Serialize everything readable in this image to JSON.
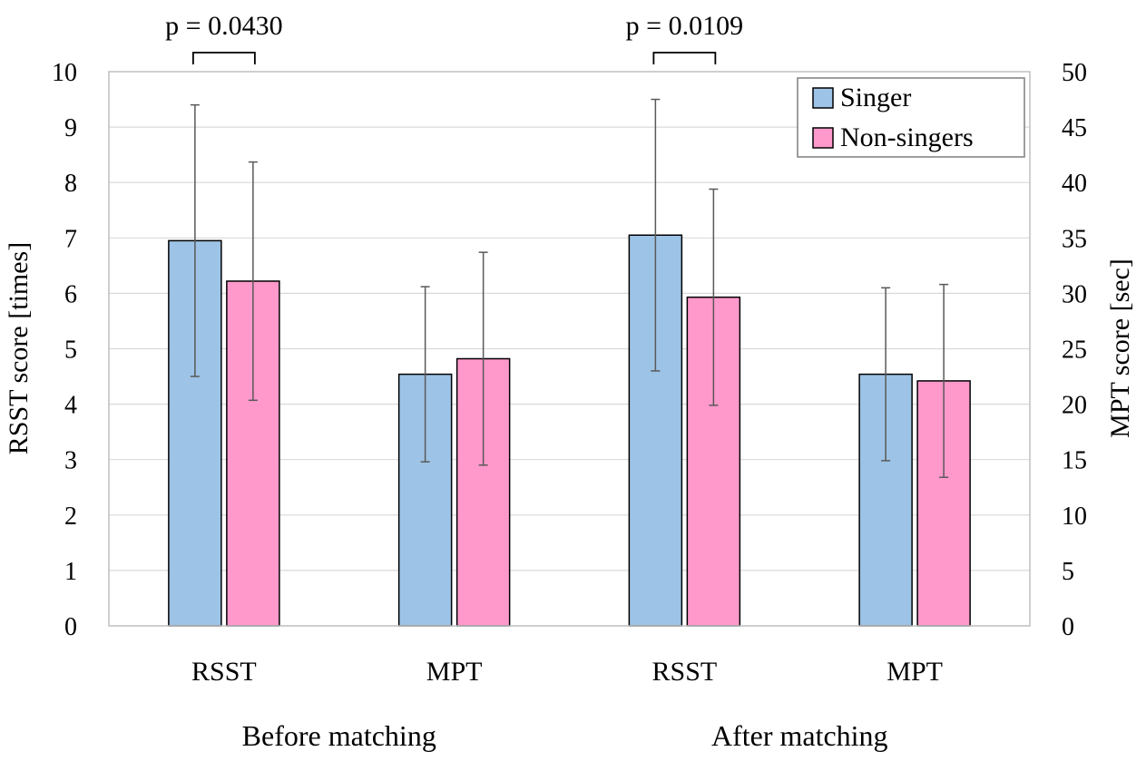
{
  "chart_data": {
    "type": "bar",
    "title": "",
    "ylabel_left": "RSST score [times]",
    "ylabel_right": "MPT score [sec]",
    "ylim_left": [
      0,
      10
    ],
    "ylim_right": [
      0,
      50
    ],
    "yticks_left": [
      "0",
      "1",
      "2",
      "3",
      "4",
      "5",
      "6",
      "7",
      "8",
      "9",
      "10"
    ],
    "yticks_right": [
      "0",
      "5",
      "10",
      "15",
      "20",
      "25",
      "30",
      "35",
      "40",
      "45",
      "50"
    ],
    "grid": true,
    "legend_position": "top-right",
    "groups": [
      {
        "label": "Before matching",
        "categories": [
          "RSST",
          "MPT"
        ]
      },
      {
        "label": "After matching",
        "categories": [
          "RSST",
          "MPT"
        ]
      }
    ],
    "series": [
      {
        "name": "Singer",
        "color": "#9dc3e6",
        "values": [
          6.95,
          22.7,
          7.05,
          22.7
        ],
        "errors": [
          2.45,
          7.9,
          2.45,
          7.8
        ],
        "axis": [
          "left",
          "right",
          "left",
          "right"
        ]
      },
      {
        "name": "Non-singers",
        "color": "#ff99cc",
        "values": [
          6.22,
          24.1,
          5.93,
          22.1
        ],
        "errors": [
          2.15,
          9.6,
          1.95,
          8.7
        ],
        "axis": [
          "left",
          "right",
          "left",
          "right"
        ]
      }
    ],
    "annotations": [
      {
        "text": "p = 0.0430",
        "group": 0,
        "category": 0
      },
      {
        "text": "p = 0.0109",
        "group": 1,
        "category": 0
      }
    ]
  }
}
